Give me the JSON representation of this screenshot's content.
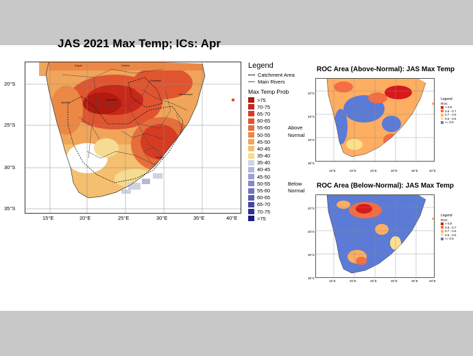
{
  "main_map": {
    "title": "JAS 2021 Max Temp; ICs: Apr",
    "lat_labels": [
      "20°S",
      "25°S",
      "30°S",
      "35°S"
    ],
    "lon_labels": [
      "15°E",
      "20°E",
      "25°E",
      "30°E",
      "35°E",
      "40°E"
    ],
    "place_labels": [
      "Angola",
      "Zambia",
      "Zimbabwe",
      "Namibia",
      "Botswana",
      "Mozambique",
      "Lesotho"
    ],
    "legend": {
      "title": "Legend",
      "catchment": "Catchment Area",
      "rivers": "Main Rivers",
      "prob_title": "Max Temp Prob",
      "items": [
        {
          "label": ">75",
          "color": "#b01a10"
        },
        {
          "label": "70-75",
          "color": "#c8281a"
        },
        {
          "label": "65-70",
          "color": "#d63c22"
        },
        {
          "label": "60-65",
          "color": "#e05530"
        },
        {
          "label": "55-60",
          "color": "#e66e3a"
        },
        {
          "label": "50-55",
          "color": "#ec8846"
        },
        {
          "label": "45-50",
          "color": "#f0a55a"
        },
        {
          "label": "40-45",
          "color": "#f4c070"
        },
        {
          "label": "35-40",
          "color": "#f6dc92"
        },
        {
          "label": "35-40",
          "color": "#cfd2e2"
        },
        {
          "label": "40-45",
          "color": "#b3b8db"
        },
        {
          "label": "45-50",
          "color": "#9ba0d2"
        },
        {
          "label": "50-55",
          "color": "#8589c8"
        },
        {
          "label": "55-60",
          "color": "#6f72bc"
        },
        {
          "label": "60-65",
          "color": "#5a5caf"
        },
        {
          "label": "65-70",
          "color": "#4446a2"
        },
        {
          "label": "70-75",
          "color": "#303195"
        },
        {
          "label": ">75",
          "color": "#1c1c86"
        }
      ],
      "above": "Above",
      "below": "Below",
      "normal": "Normal"
    }
  },
  "roc_above": {
    "title": "ROC Area (Above-Normal): JAS Max Temp",
    "lat_labels": [
      "20°S",
      "25°S",
      "30°S",
      "35°S"
    ],
    "lon_labels": [
      "15°E",
      "20°E",
      "25°E",
      "30°E",
      "35°E",
      "40°E"
    ]
  },
  "roc_below": {
    "title": "ROC Area (Below-Normal): JAS Max Temp",
    "lat_labels": [
      "20°S",
      "25°S",
      "30°S",
      "35°S"
    ],
    "lon_labels": [
      "15°E",
      "20°E",
      "25°E",
      "30°E",
      "35°E",
      "40°E"
    ]
  },
  "roc_legend": {
    "title": "Legend",
    "subtitle": "ROC",
    "items": [
      {
        "label": "> 0.8",
        "color": "#d7191c"
      },
      {
        "label": "0.8 - 0.7",
        "color": "#f46d43"
      },
      {
        "label": "0.7 - 0.6",
        "color": "#fdae61"
      },
      {
        "label": "0.6 - 0.5",
        "color": "#fee08b"
      },
      {
        "label": "<= 0.5",
        "color": "#5b7bd6"
      }
    ]
  },
  "colors": {
    "background": "#c8c8c8",
    "slide": "#ffffff"
  }
}
